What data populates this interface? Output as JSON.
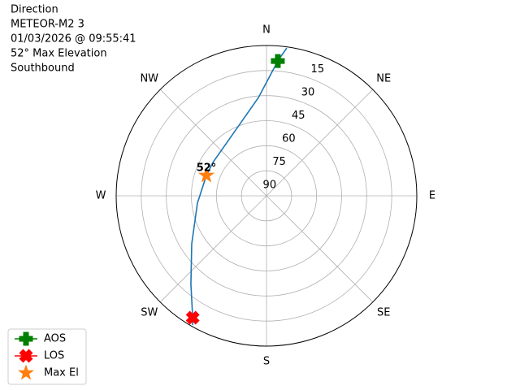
{
  "chart_data": {
    "type": "polar",
    "title_lines": [
      "Direction",
      "METEOR-M2 3",
      "01/03/2026 @ 09:55:41",
      "52° Max Elevation",
      "Southbound"
    ],
    "rlim": [
      90,
      0
    ],
    "rticks": [
      15,
      30,
      45,
      60,
      75,
      90
    ],
    "thetaticks": [
      {
        "value": 0,
        "label": "N"
      },
      {
        "value": 45,
        "label": "NE"
      },
      {
        "value": 90,
        "label": "E"
      },
      {
        "value": 135,
        "label": "SE"
      },
      {
        "value": 180,
        "label": "S"
      },
      {
        "value": 225,
        "label": "SW"
      },
      {
        "value": 270,
        "label": "W"
      },
      {
        "value": 315,
        "label": "NW"
      }
    ],
    "grid": true,
    "legend": "lower left",
    "annotation": "52°",
    "series": [
      {
        "kind": "line",
        "color": "#1f77b4",
        "azimuth": [
          7.8,
          4.8,
          355.3,
          334.9,
          301.8,
          288.7,
          263.9,
          237.3,
          220.5,
          211.2,
          209.8
        ],
        "elevation": [
          0.7,
          9,
          31,
          46.5,
          52.2,
          52,
          48.4,
          36.8,
          20.3,
          4.7,
          0.9
        ]
      },
      {
        "name": "AOS",
        "kind": "plus",
        "color": "#008000",
        "azimuth": [
          4.8
        ],
        "elevation": [
          9
        ]
      },
      {
        "name": "LOS",
        "kind": "x",
        "color": "#ff0000",
        "azimuth": [
          211.2
        ],
        "elevation": [
          4.7
        ]
      },
      {
        "name": "Max El",
        "kind": "star",
        "color": "#ff7f0e",
        "azimuth": [
          288.7
        ],
        "elevation": [
          52
        ]
      }
    ]
  }
}
